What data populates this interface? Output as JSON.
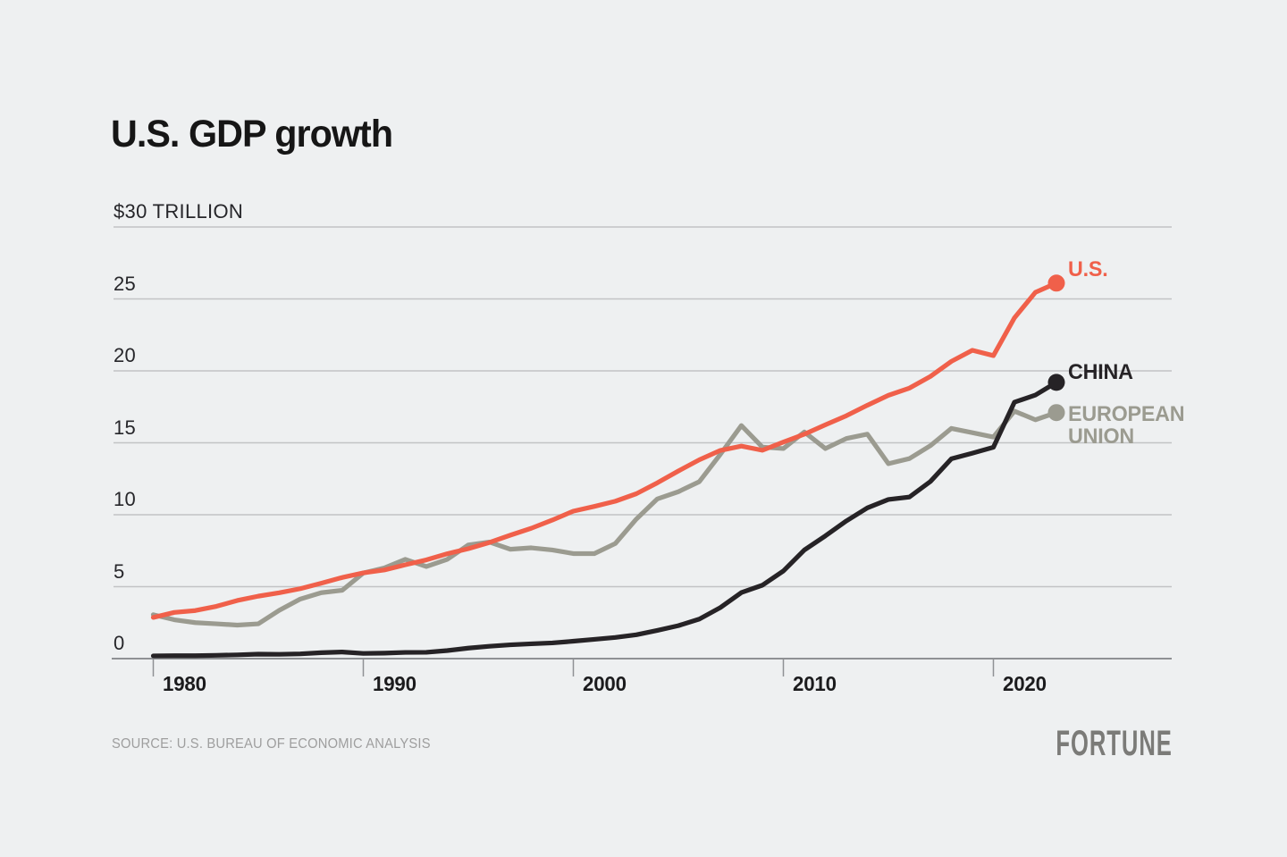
{
  "chart_data": {
    "type": "line",
    "title": "U.S. GDP growth",
    "unit_note": "$30 TRILLION",
    "source": "SOURCE: U.S. BUREAU OF ECONOMIC ANALYSIS",
    "brand": "FORTUNE",
    "year_start": 1980,
    "year_end": 2023,
    "xlim": [
      1980,
      2028
    ],
    "ylim": [
      0,
      30
    ],
    "grid": "horizontal",
    "legend_position": "right-of-line-ends",
    "x_ticks": [
      1980,
      1990,
      2000,
      2010,
      2020
    ],
    "y_ticks": [
      {
        "label": "$30 TRILLION",
        "value": 30
      },
      {
        "label": "25",
        "value": 25
      },
      {
        "label": "20",
        "value": 20
      },
      {
        "label": "15",
        "value": 15
      },
      {
        "label": "10",
        "value": 10
      },
      {
        "label": "5",
        "value": 5
      },
      {
        "label": "0",
        "value": 0
      }
    ],
    "units": "trillions of U.S. dollars",
    "series": [
      {
        "name": "U.S.",
        "color": "#f0604a",
        "values": [
          2.86,
          3.21,
          3.34,
          3.63,
          4.04,
          4.34,
          4.58,
          4.86,
          5.24,
          5.64,
          5.96,
          6.16,
          6.52,
          6.86,
          7.29,
          7.64,
          8.07,
          8.58,
          9.06,
          9.63,
          10.25,
          10.58,
          10.94,
          11.46,
          12.22,
          13.04,
          13.82,
          14.47,
          14.77,
          14.48,
          15.05,
          15.6,
          16.25,
          16.88,
          17.61,
          18.3,
          18.8,
          19.61,
          20.66,
          21.43,
          21.06,
          23.68,
          25.46,
          26.1
        ]
      },
      {
        "name": "CHINA",
        "color": "#262326",
        "values": [
          0.19,
          0.2,
          0.2,
          0.23,
          0.26,
          0.31,
          0.3,
          0.33,
          0.41,
          0.46,
          0.36,
          0.38,
          0.43,
          0.44,
          0.56,
          0.73,
          0.86,
          0.96,
          1.03,
          1.09,
          1.21,
          1.34,
          1.47,
          1.66,
          1.96,
          2.29,
          2.75,
          3.55,
          4.59,
          5.1,
          6.09,
          7.55,
          8.53,
          9.57,
          10.48,
          11.06,
          11.23,
          12.31,
          13.89,
          14.28,
          14.69,
          17.82,
          18.32,
          19.2
        ]
      },
      {
        "name": "EUROPEAN UNION",
        "color": "#9b9b90",
        "values": [
          3.05,
          2.7,
          2.5,
          2.42,
          2.33,
          2.42,
          3.36,
          4.14,
          4.58,
          4.75,
          5.95,
          6.3,
          6.9,
          6.4,
          6.9,
          7.9,
          8.1,
          7.6,
          7.7,
          7.55,
          7.3,
          7.3,
          8.0,
          9.7,
          11.1,
          11.6,
          12.3,
          14.2,
          16.2,
          14.7,
          14.6,
          15.75,
          14.6,
          15.3,
          15.6,
          13.55,
          13.9,
          14.8,
          16.0,
          15.7,
          15.4,
          17.2,
          16.6,
          17.1
        ]
      }
    ],
    "legend": {
      "us": "U.S.",
      "china": "CHINA",
      "eu": "EUROPEAN\nUNION"
    },
    "colors": {
      "background": "#eef0f1",
      "gridline": "#c2c3c5",
      "axis": "#8f9194",
      "title_text": "#161616",
      "tick_text": "#26262a"
    }
  }
}
